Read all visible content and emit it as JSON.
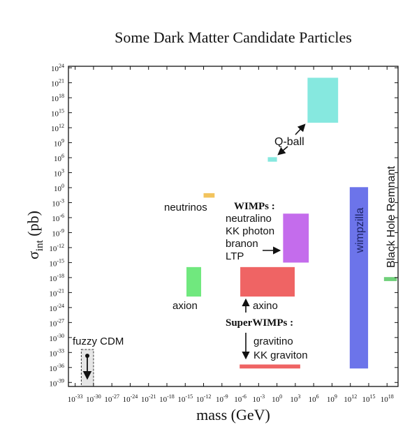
{
  "chart_data": {
    "type": "range-rectangles",
    "title": "Some Dark Matter Candidate Particles",
    "xlabel": "mass (GeV)",
    "ylabel": {
      "symbol": "σ",
      "subscript": "int",
      "unit": " (pb)"
    },
    "xscale": "log10",
    "yscale": "log10",
    "xlim_log10": [
      -34.1,
      19.8
    ],
    "ylim_log10": [
      -39.8,
      24.3
    ],
    "tick_base": "10",
    "x_tick_exponents": [
      "-33",
      "-30",
      "-27",
      "-24",
      "-21",
      "-18",
      "-15",
      "-12",
      "-9",
      "-6",
      "-3",
      "0",
      "3",
      "6",
      "9",
      "12",
      "15",
      "18"
    ],
    "y_tick_exponents": [
      "24",
      "21",
      "18",
      "15",
      "12",
      "9",
      "6",
      "3",
      "0",
      "-3",
      "-6",
      "-9",
      "-12",
      "-15",
      "-18",
      "-21",
      "-24",
      "-27",
      "-30",
      "-33",
      "-36",
      "-39"
    ],
    "grid": false,
    "regions": [
      {
        "name": "Q-ball (large)",
        "mass_log10": [
          5,
          10
        ],
        "sigma_log10": [
          13,
          22
        ],
        "color": "#86e8df"
      },
      {
        "name": "Q-ball (small)",
        "mass_log10": [
          -1.5,
          0
        ],
        "sigma_log10": [
          5.2,
          6.1
        ],
        "color": "#86e8df"
      },
      {
        "name": "neutrinos",
        "mass_log10": [
          -12,
          -10.2
        ],
        "sigma_log10": [
          -2,
          -1.1
        ],
        "color": "#f2c45e"
      },
      {
        "name": "WIMPs",
        "mass_log10": [
          1,
          5.2
        ],
        "sigma_log10": [
          -15,
          -5.2
        ],
        "color": "#c46cec"
      },
      {
        "name": "axion",
        "mass_log10": [
          -14.8,
          -12.4
        ],
        "sigma_log10": [
          -21.8,
          -15.9
        ],
        "color": "#70e87e"
      },
      {
        "name": "axino",
        "mass_log10": [
          -6,
          2.9
        ],
        "sigma_log10": [
          -21.8,
          -15.9
        ],
        "color": "#ef6464"
      },
      {
        "name": "SuperWIMPs",
        "mass_log10": [
          -6.1,
          3.8
        ],
        "sigma_log10": [
          -36.2,
          -35.4
        ],
        "color": "#ef6464"
      },
      {
        "name": "wimpzilla",
        "mass_log10": [
          11.9,
          14.9
        ],
        "sigma_log10": [
          -36.2,
          0.1
        ],
        "color": "#6c74ea"
      },
      {
        "name": "Black Hole Remnant",
        "mass_log10": [
          17.5,
          19.6
        ],
        "sigma_log10": [
          -18.7,
          -17.9
        ],
        "color": "#70d07a"
      },
      {
        "name": "fuzzy CDM",
        "mass_log10": [
          -32,
          -30
        ],
        "sigma_log10": [
          -39.8,
          -32.4
        ],
        "color": "#e6e6e6",
        "dashed": true
      }
    ],
    "annotations": {
      "qball": "Q-ball",
      "neutrinos": "neutrinos",
      "wimps_header": "WIMPs :",
      "wimps_list": [
        "neutralino",
        "KK photon",
        "branon",
        "LTP"
      ],
      "axion": "axion",
      "axino": "axino",
      "superwimps_header": "SuperWIMPs :",
      "superwimps_list": [
        "gravitino",
        "KK graviton"
      ],
      "wimpzilla": "wimpzilla",
      "black_hole": "Black Hole Remnant",
      "fuzzy": "fuzzy CDM"
    },
    "colors": {
      "axis": "#111111",
      "wimpzilla_text": "#1d2466"
    }
  }
}
